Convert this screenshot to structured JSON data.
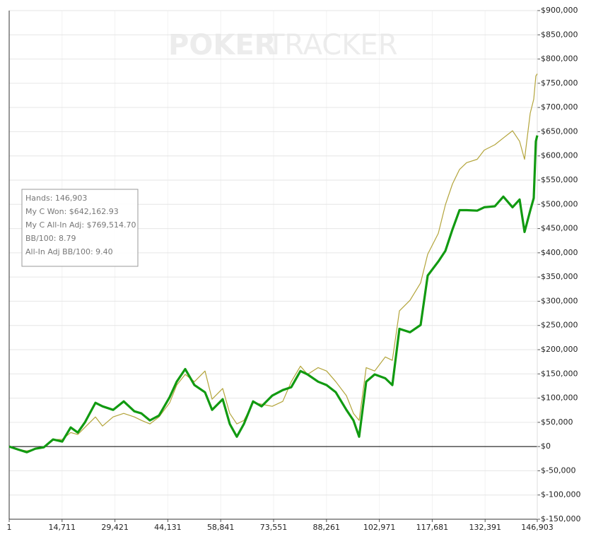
{
  "chart_data": {
    "type": "line",
    "watermark": [
      "POKER",
      "TRACKER"
    ],
    "annotations": [
      "Hands: 146,903",
      "My C Won: $642,162.93",
      "My C All-In Adj: $769,514.70",
      "BB/100: 8.79",
      "All-In Adj BB/100: 9.40"
    ],
    "x": [
      1,
      2361,
      4917,
      7277,
      9637,
      12194,
      14751,
      17111,
      19078,
      21044,
      23994,
      25961,
      28910,
      31860,
      34810,
      36777,
      39137,
      41693,
      44643,
      46610,
      48970,
      51526,
      54476,
      56443,
      59393,
      61359,
      63326,
      65292,
      67849,
      70209,
      73159,
      76108,
      78468,
      81025,
      82991,
      85941,
      88301,
      90857,
      93807,
      95774,
      97347,
      99314,
      101674,
      104624,
      106590,
      108557,
      111507,
      114457,
      116423,
      119373,
      121340,
      123306,
      125273,
      127240,
      130189,
      132156,
      135106,
      137466,
      140022,
      141989,
      143366,
      144939,
      145922,
      146512,
      146903
    ],
    "series": [
      {
        "color": "#b3a43a",
        "width": 1.2,
        "values": [
          0,
          -5800,
          -9000,
          -4400,
          -1500,
          14600,
          14600,
          29000,
          24800,
          39400,
          61200,
          42300,
          61200,
          68500,
          61200,
          54000,
          46700,
          61200,
          90400,
          127000,
          149000,
          134000,
          156000,
          97700,
          120000,
          68500,
          46700,
          54000,
          90400,
          87500,
          83100,
          93300,
          134000,
          166000,
          149000,
          163000,
          156000,
          134000,
          105000,
          68500,
          54000,
          163000,
          156000,
          185000,
          178000,
          280000,
          302000,
          338000,
          397000,
          440000,
          499000,
          542000,
          572000,
          586000,
          593000,
          612000,
          623000,
          637000,
          652000,
          630000,
          593000,
          688000,
          717000,
          765000,
          769515
        ]
      },
      {
        "color": "#119a11",
        "width": 3.2,
        "values": [
          0,
          -5800,
          -11700,
          -4400,
          -1500,
          14600,
          10200,
          39400,
          29000,
          49600,
          90400,
          83100,
          75800,
          93300,
          72900,
          68500,
          54000,
          64200,
          102000,
          134000,
          160000,
          127000,
          112000,
          75800,
          97700,
          46700,
          20400,
          46700,
          93300,
          83100,
          105000,
          116600,
          122500,
          156000,
          149000,
          134000,
          127000,
          112000,
          75800,
          54000,
          20400,
          134000,
          149000,
          141000,
          127000,
          243000,
          236000,
          251000,
          353000,
          382000,
          404000,
          448000,
          488000,
          488000,
          487000,
          494000,
          496000,
          516000,
          494000,
          510000,
          443000,
          487000,
          513000,
          630000,
          642163
        ]
      }
    ],
    "xlim": [
      1,
      146903
    ],
    "xticks": [
      1,
      {
        "value": 14711,
        "label": "14,711"
      },
      {
        "value": 29421,
        "label": "29,421"
      },
      {
        "value": 44131,
        "label": "44,131"
      },
      {
        "value": 58841,
        "label": "58,841"
      },
      {
        "value": 73551,
        "label": "73,551"
      },
      {
        "value": 88261,
        "label": "88,261"
      },
      {
        "value": 102971,
        "label": "102,971"
      },
      {
        "value": 117681,
        "label": "117,681"
      },
      {
        "value": 132391,
        "label": "132,391"
      },
      {
        "value": 146903,
        "label": "146,903"
      }
    ],
    "ylim": [
      -150000,
      900000
    ],
    "yticks": [
      {
        "value": 900000,
        "label": "$900,000"
      },
      {
        "value": 850000,
        "label": "$850,000"
      },
      {
        "value": 800000,
        "label": "$800,000"
      },
      {
        "value": 750000,
        "label": "$750,000"
      },
      {
        "value": 700000,
        "label": "$700,000"
      },
      {
        "value": 650000,
        "label": "$650,000"
      },
      {
        "value": 600000,
        "label": "$600,000"
      },
      {
        "value": 550000,
        "label": "$550,000"
      },
      {
        "value": 500000,
        "label": "$500,000"
      },
      {
        "value": 450000,
        "label": "$450,000"
      },
      {
        "value": 400000,
        "label": "$400,000"
      },
      {
        "value": 350000,
        "label": "$350,000"
      },
      {
        "value": 300000,
        "label": "$300,000"
      },
      {
        "value": 250000,
        "label": "$250,000"
      },
      {
        "value": 200000,
        "label": "$200,000"
      },
      {
        "value": 150000,
        "label": "$150,000"
      },
      {
        "value": 100000,
        "label": "$100,000"
      },
      {
        "value": 50000,
        "label": "$50,000"
      },
      {
        "value": 0,
        "label": "$0"
      },
      {
        "value": -50000,
        "label": "$-50,000"
      },
      {
        "value": -100000,
        "label": "$-100,000"
      },
      {
        "value": -150000,
        "label": "$-150,000"
      }
    ],
    "grid": true
  }
}
